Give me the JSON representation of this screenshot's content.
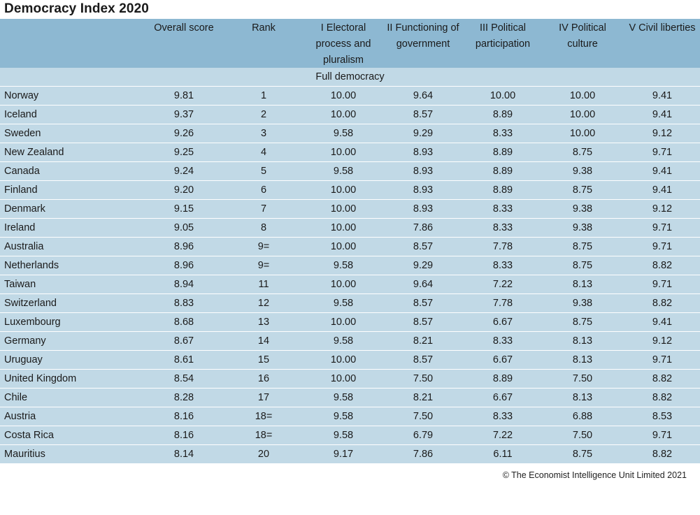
{
  "chart_data": {
    "type": "table",
    "title": "Democracy Index 2020",
    "columns": [
      "",
      "Overall score",
      "Rank",
      "I Electoral process and pluralism",
      "II Functioning of government",
      "III Political participation",
      "IV Political culture",
      "V Civil liberties"
    ],
    "header_lines": [
      [],
      [
        "Overall score"
      ],
      [
        "Rank"
      ],
      [
        "I Electoral",
        "process and",
        "pluralism"
      ],
      [
        "II Functioning of",
        "government"
      ],
      [
        "III Political",
        "participation"
      ],
      [
        "IV Political",
        "culture"
      ],
      [
        "V Civil liberties"
      ]
    ],
    "section": "Full democracy",
    "rows": [
      [
        "Norway",
        "9.81",
        "1",
        "10.00",
        "9.64",
        "10.00",
        "10.00",
        "9.41"
      ],
      [
        "Iceland",
        "9.37",
        "2",
        "10.00",
        "8.57",
        "8.89",
        "10.00",
        "9.41"
      ],
      [
        "Sweden",
        "9.26",
        "3",
        "9.58",
        "9.29",
        "8.33",
        "10.00",
        "9.12"
      ],
      [
        "New Zealand",
        "9.25",
        "4",
        "10.00",
        "8.93",
        "8.89",
        "8.75",
        "9.71"
      ],
      [
        "Canada",
        "9.24",
        "5",
        "9.58",
        "8.93",
        "8.89",
        "9.38",
        "9.41"
      ],
      [
        "Finland",
        "9.20",
        "6",
        "10.00",
        "8.93",
        "8.89",
        "8.75",
        "9.41"
      ],
      [
        "Denmark",
        "9.15",
        "7",
        "10.00",
        "8.93",
        "8.33",
        "9.38",
        "9.12"
      ],
      [
        "Ireland",
        "9.05",
        "8",
        "10.00",
        "7.86",
        "8.33",
        "9.38",
        "9.71"
      ],
      [
        "Australia",
        "8.96",
        "9=",
        "10.00",
        "8.57",
        "7.78",
        "8.75",
        "9.71"
      ],
      [
        "Netherlands",
        "8.96",
        "9=",
        "9.58",
        "9.29",
        "8.33",
        "8.75",
        "8.82"
      ],
      [
        "Taiwan",
        "8.94",
        "11",
        "10.00",
        "9.64",
        "7.22",
        "8.13",
        "9.71"
      ],
      [
        "Switzerland",
        "8.83",
        "12",
        "9.58",
        "8.57",
        "7.78",
        "9.38",
        "8.82"
      ],
      [
        "Luxembourg",
        "8.68",
        "13",
        "10.00",
        "8.57",
        "6.67",
        "8.75",
        "9.41"
      ],
      [
        "Germany",
        "8.67",
        "14",
        "9.58",
        "8.21",
        "8.33",
        "8.13",
        "9.12"
      ],
      [
        "Uruguay",
        "8.61",
        "15",
        "10.00",
        "8.57",
        "6.67",
        "8.13",
        "9.71"
      ],
      [
        "United Kingdom",
        "8.54",
        "16",
        "10.00",
        "7.50",
        "8.89",
        "7.50",
        "8.82"
      ],
      [
        "Chile",
        "8.28",
        "17",
        "9.58",
        "8.21",
        "6.67",
        "8.13",
        "8.82"
      ],
      [
        "Austria",
        "8.16",
        "18=",
        "9.58",
        "7.50",
        "8.33",
        "6.88",
        "8.53"
      ],
      [
        "Costa Rica",
        "8.16",
        "18=",
        "9.58",
        "6.79",
        "7.22",
        "7.50",
        "9.71"
      ],
      [
        "Mauritius",
        "8.14",
        "20",
        "9.17",
        "7.86",
        "6.11",
        "8.75",
        "8.82"
      ]
    ],
    "source": "© The Economist Intelligence Unit Limited 2021"
  },
  "colors": {
    "header_bg": "#8db8d2",
    "row_bg": "#c1d9e6",
    "divider": "#ffffff"
  }
}
